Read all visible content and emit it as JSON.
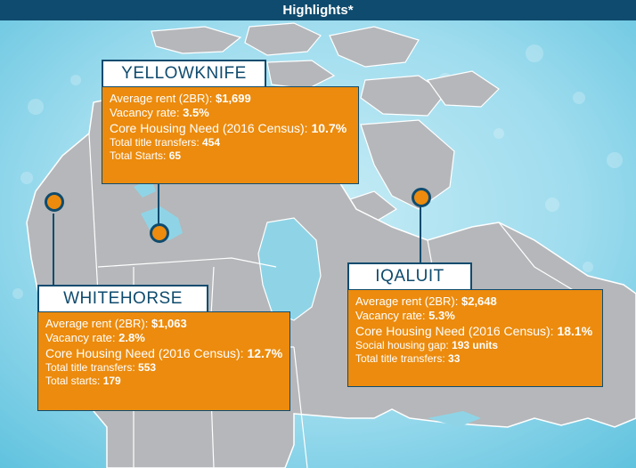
{
  "header": {
    "title": "Highlights*"
  },
  "colors": {
    "header_bg": "#0f4b6e",
    "card_bg": "#ec8b0d",
    "land": "#b5b7ba",
    "water": "#8fd4e6"
  },
  "cities": [
    {
      "name": "YELLOWKNIFE",
      "stats": [
        {
          "label": "Average rent (2BR): ",
          "value": "$1,699"
        },
        {
          "label": "Vacancy rate: ",
          "value": "3.5%"
        },
        {
          "label": "Core Housing Need (2016 Census): ",
          "value": "10.7%"
        },
        {
          "label": "Total title transfers: ",
          "value": "454"
        },
        {
          "label": "Total Starts: ",
          "value": "65"
        }
      ]
    },
    {
      "name": "WHITEHORSE",
      "stats": [
        {
          "label": "Average rent (2BR): ",
          "value": "$1,063"
        },
        {
          "label": "Vacancy rate: ",
          "value": "2.8%"
        },
        {
          "label": "Core Housing Need (2016 Census): ",
          "value": "12.7%"
        },
        {
          "label": "Total title transfers: ",
          "value": "553"
        },
        {
          "label": "Total starts: ",
          "value": "179"
        }
      ]
    },
    {
      "name": "IQALUIT",
      "stats": [
        {
          "label": "Average rent (2BR): ",
          "value": "$2,648"
        },
        {
          "label": "Vacancy rate: ",
          "value": "5.3%"
        },
        {
          "label": "Core Housing Need (2016 Census): ",
          "value": "18.1%"
        },
        {
          "label": "Social housing gap: ",
          "value": "193 units"
        },
        {
          "label": "Total title transfers: ",
          "value": "33"
        }
      ]
    }
  ]
}
